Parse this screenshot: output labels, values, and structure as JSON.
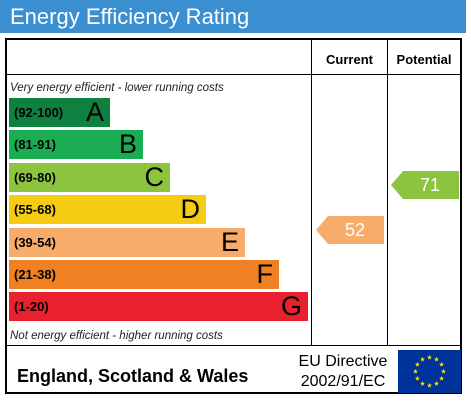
{
  "title": "Energy Efficiency Rating",
  "columns": {
    "current": "Current",
    "potential": "Potential"
  },
  "notes": {
    "top": "Very energy efficient - lower running costs",
    "bottom": "Not energy efficient - higher running costs"
  },
  "bands": [
    {
      "range": "(92-100)",
      "letter": "A",
      "color": "#0e8040"
    },
    {
      "range": "(81-91)",
      "letter": "B",
      "color": "#1aad52"
    },
    {
      "range": "(69-80)",
      "letter": "C",
      "color": "#8cc43f"
    },
    {
      "range": "(55-68)",
      "letter": "D",
      "color": "#f5cc12"
    },
    {
      "range": "(39-54)",
      "letter": "E",
      "color": "#f7ac6b"
    },
    {
      "range": "(21-38)",
      "letter": "F",
      "color": "#ef8023"
    },
    {
      "range": "(1-20)",
      "letter": "G",
      "color": "#e9202d"
    }
  ],
  "ratings": {
    "current": {
      "value": "52",
      "color": "#f7ac6b"
    },
    "potential": {
      "value": "71",
      "color": "#8cc43f"
    }
  },
  "footer": {
    "region": "England, Scotland & Wales",
    "directive_line1": "EU Directive",
    "directive_line2": "2002/91/EC",
    "flag_icon": "eu-flag-icon"
  }
}
